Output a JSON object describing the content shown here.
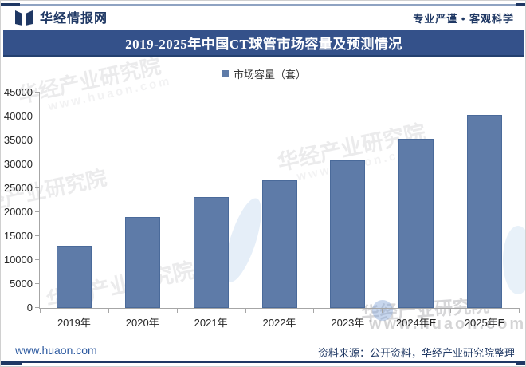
{
  "header": {
    "brand": "华经情报网",
    "slogan": "专业严谨 • 客观科学"
  },
  "title": "2019-2025年中国CT球管市场容量及预测情况",
  "legend": {
    "label": "市场容量（套）",
    "marker_color": "#5e7ba8"
  },
  "chart_data": {
    "type": "bar",
    "title": "2019-2025年中国CT球管市场容量及预测情况",
    "series_name": "市场容量（套）",
    "categories": [
      "2019年",
      "2020年",
      "2021年",
      "2022年",
      "2023年",
      "2024年E",
      "2025年E"
    ],
    "values": [
      13000,
      19000,
      23200,
      26700,
      30800,
      35400,
      40300
    ],
    "xlabel": "",
    "ylabel": "",
    "ylim": [
      0,
      45000
    ],
    "ytick_step": 5000,
    "bar_color": "#5e7ba8",
    "grid": false,
    "legend_position": "top"
  },
  "watermarks": {
    "text": "华经产业研究院",
    "url": "www.huaon.com"
  },
  "footer": {
    "url": "www.huaon.com",
    "source": "资料来源：公开资料，华经产业研究院整理"
  },
  "colors": {
    "accent_navy": "#1f3864",
    "title_band_bg": "#34518a",
    "bar_fill": "#5e7ba8",
    "bar_border": "#4a6a9a",
    "axis_line": "#a6a6a6",
    "footer_link": "#2d5aa0"
  }
}
